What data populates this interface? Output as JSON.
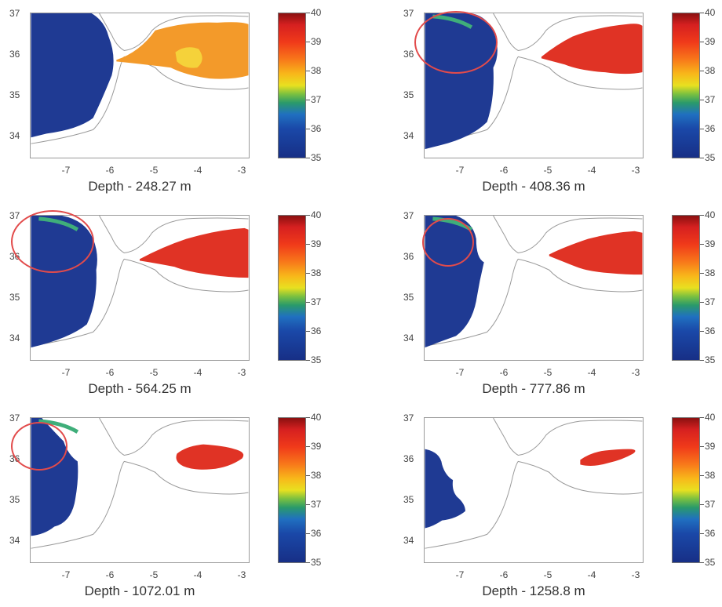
{
  "colors": {
    "low_salinity": "#1f3a93",
    "mid_blue": "#2a6fc4",
    "high_orange": "#f39a2a",
    "high_red": "#e03325",
    "highlight_circle": "#e24b4b",
    "coast": "#9a9a9a"
  },
  "axes": {
    "yticks": [
      "37",
      "36",
      "35",
      "34"
    ],
    "xticks": [
      "-7",
      "-6",
      "-5",
      "-4",
      "-3"
    ]
  },
  "colorbar": {
    "ticks": [
      "40",
      "39",
      "38",
      "37",
      "36",
      "35"
    ]
  },
  "panels": [
    {
      "caption": "Depth - 248.27 m",
      "highlighted": false
    },
    {
      "caption": "Depth - 408.36 m",
      "highlighted": true
    },
    {
      "caption": "Depth - 564.25 m",
      "highlighted": true
    },
    {
      "caption": "Depth - 777.86 m",
      "highlighted": true
    },
    {
      "caption": "Depth - 1072.01 m",
      "highlighted": true
    },
    {
      "caption": "Depth - 1258.8 m",
      "highlighted": false
    }
  ]
}
